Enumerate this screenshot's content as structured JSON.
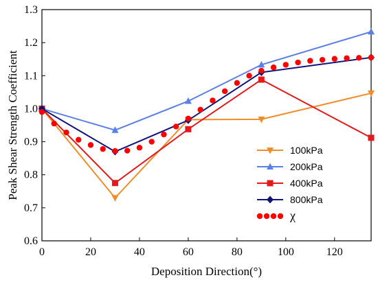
{
  "chart_data": {
    "type": "line",
    "xlabel": "Deposition Direction(°)",
    "ylabel": "Peak Shear Strength Coefficient",
    "xlim": [
      0,
      135
    ],
    "ylim": [
      0.6,
      1.3
    ],
    "xticks": [
      0,
      20,
      40,
      60,
      80,
      100,
      120
    ],
    "yticks": [
      0.6,
      0.7,
      0.8,
      0.9,
      1.0,
      1.1,
      1.2,
      1.3
    ],
    "ytick_labels": [
      "0.6",
      "0.7",
      "0.8",
      "0.9",
      "1.0",
      "1.1",
      "1.2",
      "1.3"
    ],
    "grid": false,
    "legend_position": "lower-right",
    "series": [
      {
        "name": "100kPa",
        "color": "#F28C28",
        "marker": "triangle-down",
        "x": [
          0,
          30,
          60,
          90,
          135
        ],
        "y": [
          1.0,
          0.73,
          0.967,
          0.968,
          1.047
        ]
      },
      {
        "name": "200kPa",
        "color": "#5B7FE8",
        "marker": "triangle-up",
        "x": [
          0,
          30,
          60,
          90,
          135
        ],
        "y": [
          1.0,
          0.935,
          1.023,
          1.133,
          1.233
        ]
      },
      {
        "name": "400kPa",
        "color": "#E31A1C",
        "marker": "square",
        "x": [
          0,
          30,
          60,
          90,
          135
        ],
        "y": [
          1.0,
          0.775,
          0.938,
          1.088,
          0.912
        ]
      },
      {
        "name": "800kPa",
        "color": "#10127A",
        "marker": "diamond",
        "x": [
          0,
          30,
          60,
          90,
          135
        ],
        "y": [
          1.0,
          0.87,
          0.965,
          1.11,
          1.155
        ]
      }
    ],
    "fit_series": {
      "name": "χ",
      "color": "#FF0000",
      "style": "dotted",
      "x": [
        0,
        5,
        10,
        15,
        20,
        25,
        30,
        35,
        40,
        45,
        50,
        55,
        60,
        65,
        70,
        75,
        80,
        85,
        90,
        95,
        100,
        105,
        110,
        115,
        120,
        125,
        130,
        135
      ],
      "y": [
        0.99,
        0.955,
        0.928,
        0.906,
        0.89,
        0.878,
        0.872,
        0.873,
        0.882,
        0.9,
        0.922,
        0.946,
        0.97,
        0.997,
        1.025,
        1.053,
        1.078,
        1.1,
        1.115,
        1.125,
        1.133,
        1.14,
        1.145,
        1.148,
        1.151,
        1.153,
        1.154,
        1.155
      ]
    }
  }
}
